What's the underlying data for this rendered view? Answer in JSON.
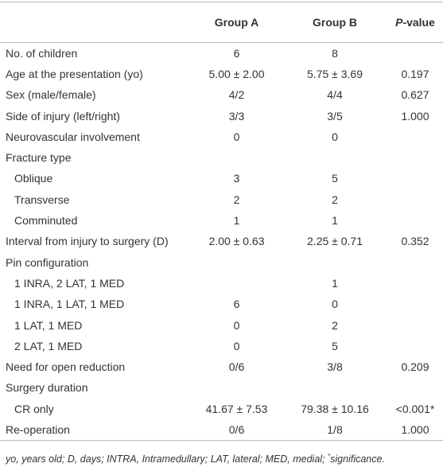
{
  "table": {
    "header": {
      "group_a": "Group A",
      "group_b": "Group B",
      "p_italic": "P",
      "p_rest": "-value"
    },
    "rows": [
      {
        "label": "No. of children",
        "a": "6",
        "b": "8"
      },
      {
        "label": "Age at the presentation (yo)",
        "a": "5.00 ± 2.00",
        "b": "5.75 ± 3.69",
        "p": "0.197"
      },
      {
        "label": "Sex (male/female)",
        "a": "4/2",
        "b": "4/4",
        "p": "0.627"
      },
      {
        "label": "Side of injury (left/right)",
        "a": "3/3",
        "b": "3/5",
        "p": "1.000"
      },
      {
        "label": "Neurovascular involvement",
        "a": "0",
        "b": "0"
      },
      {
        "label": "Fracture type"
      },
      {
        "label": "Oblique",
        "indent": true,
        "a": "3",
        "b": "5"
      },
      {
        "label": "Transverse",
        "indent": true,
        "a": "2",
        "b": "2"
      },
      {
        "label": "Comminuted",
        "indent": true,
        "a": "1",
        "b": "1"
      },
      {
        "label": "Interval from injury to surgery (D)",
        "a": "2.00 ± 0.63",
        "b": "2.25 ± 0.71",
        "p": "0.352"
      },
      {
        "label": "Pin configuration"
      },
      {
        "label": "1 INRA, 2 LAT, 1 MED",
        "indent": true,
        "b": "1"
      },
      {
        "label": "1 INRA, 1 LAT, 1 MED",
        "indent": true,
        "a": "6",
        "b": "0"
      },
      {
        "label": "1 LAT, 1 MED",
        "indent": true,
        "a": "0",
        "b": "2"
      },
      {
        "label": "2 LAT, 1 MED",
        "indent": true,
        "a": "0",
        "b": "5"
      },
      {
        "label": "Need for open reduction",
        "a": "0/6",
        "b": "3/8",
        "p": "0.209"
      },
      {
        "label": "Surgery duration"
      },
      {
        "label": "CR only",
        "indent": true,
        "a": "41.67 ± 7.53",
        "b": "79.38 ± 10.16",
        "p": "<0.001*"
      },
      {
        "label": "Re-operation",
        "a": "0/6",
        "b": "1/8",
        "p": "1.000"
      }
    ]
  },
  "footnote": {
    "text": "yo, years old; D, days; INTRA, Intramedullary; LAT, lateral; MED, medial; ",
    "marker": "*",
    "tail": "significance."
  }
}
